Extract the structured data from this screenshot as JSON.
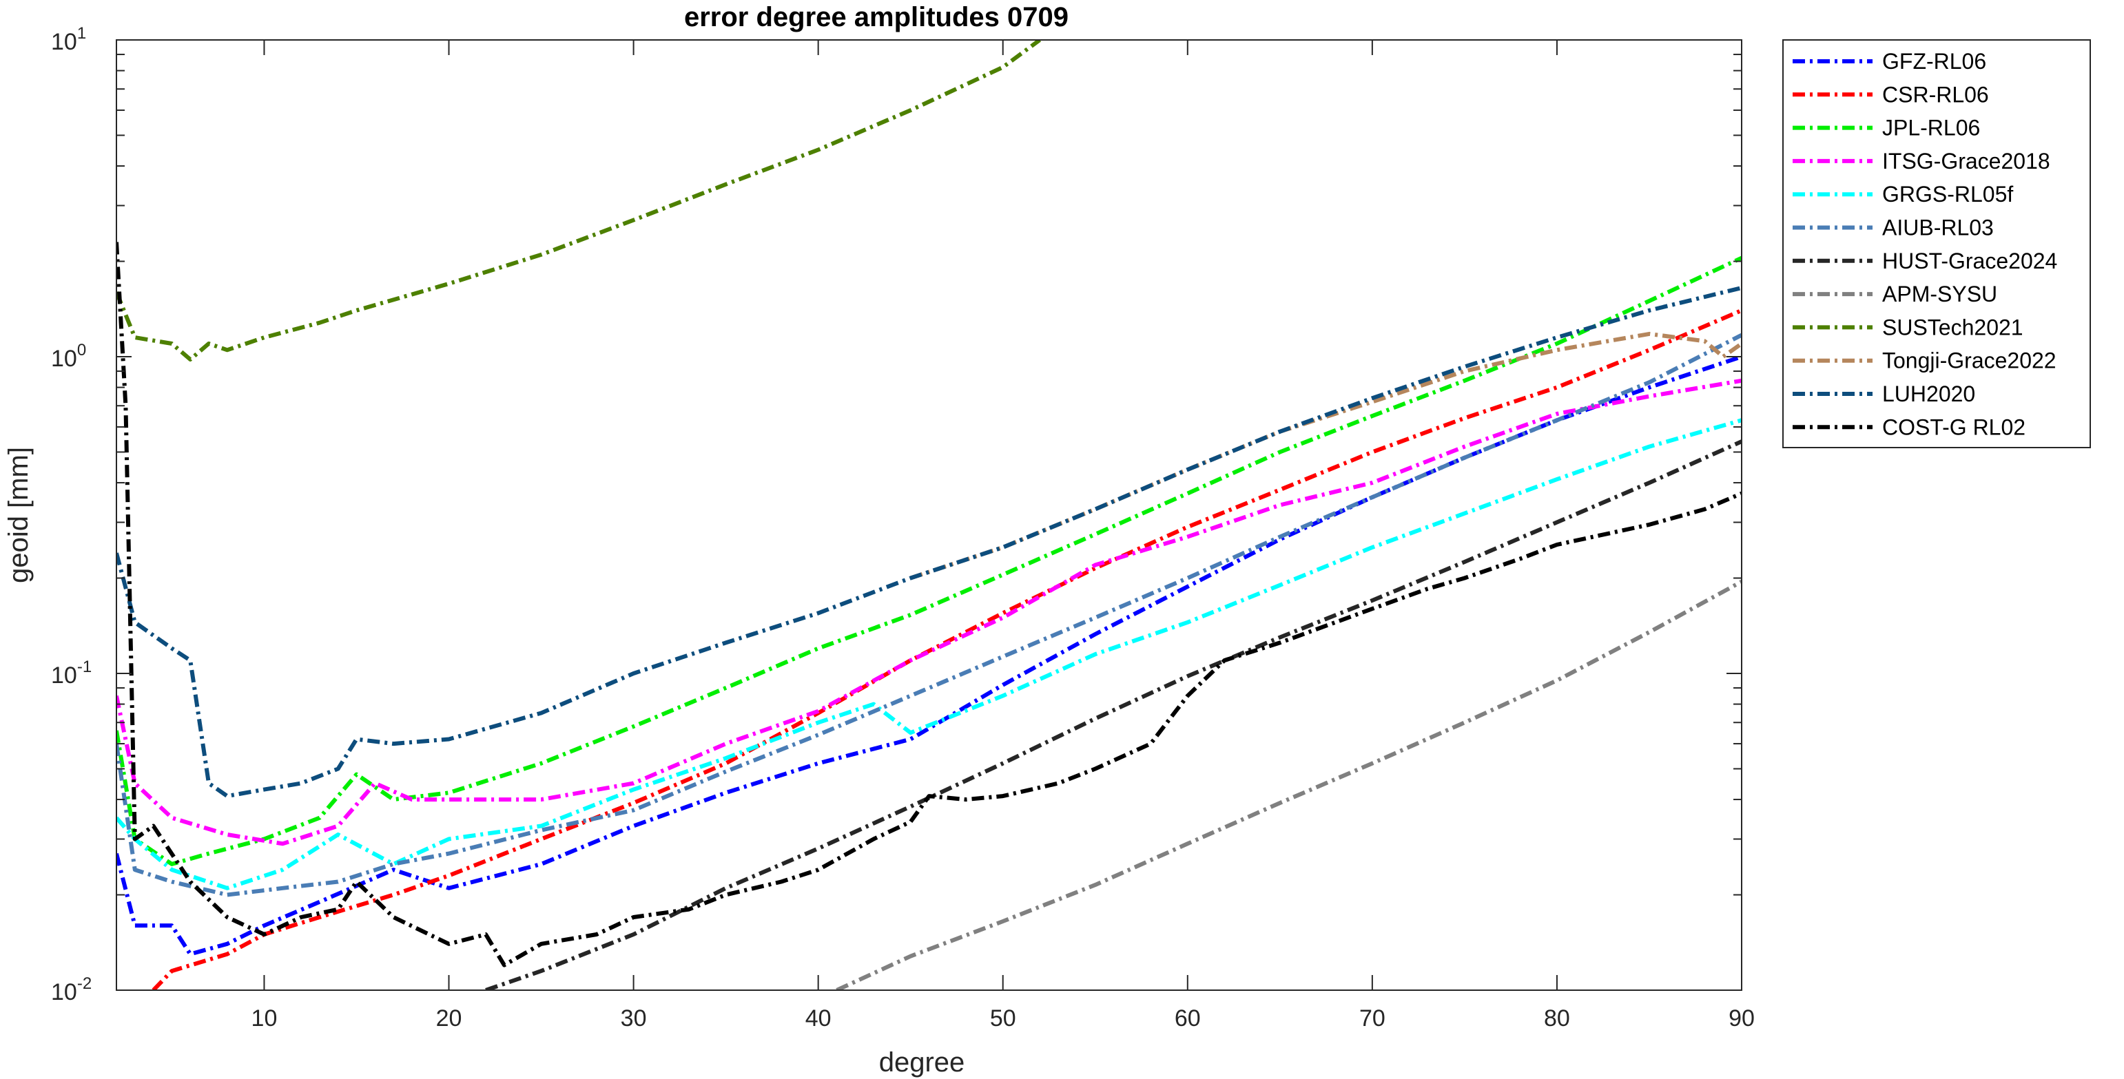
{
  "chart_data": {
    "type": "line",
    "title": "error degree amplitudes 0709",
    "xlabel": "degree",
    "ylabel": "geoid [mm]",
    "xlim": [
      2,
      90
    ],
    "ylim": [
      0.01,
      10
    ],
    "yscale": "log",
    "x_ticks": [
      10,
      20,
      30,
      40,
      50,
      60,
      70,
      80,
      90
    ],
    "x_tick_labels": [
      "10",
      "20",
      "30",
      "40",
      "50",
      "60",
      "70",
      "80",
      "90"
    ],
    "y_ticks": [
      0.01,
      0.1,
      1,
      10
    ],
    "y_tick_labels": [
      {
        "base": "10",
        "exp": "-2"
      },
      {
        "base": "10",
        "exp": "-1"
      },
      {
        "base": "10",
        "exp": "0"
      },
      {
        "base": "10",
        "exp": "1"
      }
    ],
    "grid": false,
    "legend_position": "outside-top-right",
    "line_style": "dash-dot",
    "series": [
      {
        "name": "GFZ-RL06",
        "color": "#0000ff",
        "points": [
          [
            2,
            0.027
          ],
          [
            3,
            0.016
          ],
          [
            5,
            0.016
          ],
          [
            6,
            0.013
          ],
          [
            8,
            0.014
          ],
          [
            10,
            0.016
          ],
          [
            13,
            0.019
          ],
          [
            17,
            0.024
          ],
          [
            20,
            0.021
          ],
          [
            25,
            0.025
          ],
          [
            30,
            0.033
          ],
          [
            35,
            0.042
          ],
          [
            40,
            0.052
          ],
          [
            45,
            0.062
          ],
          [
            50,
            0.092
          ],
          [
            55,
            0.133
          ],
          [
            60,
            0.188
          ],
          [
            65,
            0.265
          ],
          [
            70,
            0.36
          ],
          [
            75,
            0.48
          ],
          [
            80,
            0.63
          ],
          [
            85,
            0.8
          ],
          [
            90,
            1.0
          ]
        ]
      },
      {
        "name": "CSR-RL06",
        "color": "#ff0000",
        "points": [
          [
            4,
            0.01
          ],
          [
            5,
            0.0115
          ],
          [
            8,
            0.013
          ],
          [
            10,
            0.015
          ],
          [
            13,
            0.017
          ],
          [
            17,
            0.02
          ],
          [
            20,
            0.023
          ],
          [
            25,
            0.03
          ],
          [
            30,
            0.039
          ],
          [
            35,
            0.052
          ],
          [
            40,
            0.075
          ],
          [
            45,
            0.11
          ],
          [
            50,
            0.155
          ],
          [
            55,
            0.215
          ],
          [
            60,
            0.29
          ],
          [
            65,
            0.38
          ],
          [
            70,
            0.5
          ],
          [
            75,
            0.64
          ],
          [
            80,
            0.8
          ],
          [
            85,
            1.05
          ],
          [
            90,
            1.4
          ]
        ]
      },
      {
        "name": "JPL-RL06",
        "color": "#00ee00",
        "points": [
          [
            2,
            0.066
          ],
          [
            3,
            0.03
          ],
          [
            5,
            0.025
          ],
          [
            7,
            0.027
          ],
          [
            10,
            0.03
          ],
          [
            13,
            0.035
          ],
          [
            15,
            0.048
          ],
          [
            17,
            0.04
          ],
          [
            20,
            0.042
          ],
          [
            25,
            0.052
          ],
          [
            30,
            0.068
          ],
          [
            35,
            0.09
          ],
          [
            40,
            0.12
          ],
          [
            45,
            0.153
          ],
          [
            50,
            0.205
          ],
          [
            55,
            0.275
          ],
          [
            60,
            0.37
          ],
          [
            65,
            0.5
          ],
          [
            70,
            0.65
          ],
          [
            75,
            0.84
          ],
          [
            80,
            1.1
          ],
          [
            85,
            1.5
          ],
          [
            90,
            2.05
          ]
        ]
      },
      {
        "name": "ITSG-Grace2018",
        "color": "#ff00ff",
        "points": [
          [
            2,
            0.085
          ],
          [
            3,
            0.045
          ],
          [
            5,
            0.035
          ],
          [
            8,
            0.031
          ],
          [
            11,
            0.029
          ],
          [
            14,
            0.033
          ],
          [
            16,
            0.045
          ],
          [
            18,
            0.04
          ],
          [
            20,
            0.04
          ],
          [
            25,
            0.04
          ],
          [
            30,
            0.045
          ],
          [
            35,
            0.06
          ],
          [
            40,
            0.076
          ],
          [
            45,
            0.11
          ],
          [
            50,
            0.15
          ],
          [
            55,
            0.22
          ],
          [
            60,
            0.27
          ],
          [
            65,
            0.34
          ],
          [
            70,
            0.4
          ],
          [
            75,
            0.52
          ],
          [
            80,
            0.66
          ],
          [
            85,
            0.75
          ],
          [
            90,
            0.84
          ]
        ]
      },
      {
        "name": "GRGS-RL05f",
        "color": "#00ffff",
        "points": [
          [
            2,
            0.035
          ],
          [
            3,
            0.03
          ],
          [
            5,
            0.024
          ],
          [
            8,
            0.021
          ],
          [
            11,
            0.024
          ],
          [
            14,
            0.031
          ],
          [
            17,
            0.025
          ],
          [
            20,
            0.03
          ],
          [
            25,
            0.033
          ],
          [
            30,
            0.043
          ],
          [
            35,
            0.054
          ],
          [
            40,
            0.07
          ],
          [
            43,
            0.08
          ],
          [
            45,
            0.065
          ],
          [
            50,
            0.085
          ],
          [
            55,
            0.115
          ],
          [
            60,
            0.145
          ],
          [
            65,
            0.19
          ],
          [
            70,
            0.25
          ],
          [
            75,
            0.32
          ],
          [
            80,
            0.41
          ],
          [
            85,
            0.52
          ],
          [
            90,
            0.63
          ]
        ]
      },
      {
        "name": "AIUB-RL03",
        "color": "#4a7db5",
        "points": [
          [
            2,
            0.06
          ],
          [
            3,
            0.024
          ],
          [
            5,
            0.022
          ],
          [
            8,
            0.02
          ],
          [
            11,
            0.021
          ],
          [
            14,
            0.022
          ],
          [
            17,
            0.025
          ],
          [
            20,
            0.027
          ],
          [
            25,
            0.032
          ],
          [
            30,
            0.037
          ],
          [
            35,
            0.049
          ],
          [
            40,
            0.064
          ],
          [
            45,
            0.085
          ],
          [
            50,
            0.113
          ],
          [
            55,
            0.15
          ],
          [
            60,
            0.2
          ],
          [
            65,
            0.27
          ],
          [
            70,
            0.36
          ],
          [
            75,
            0.48
          ],
          [
            80,
            0.63
          ],
          [
            85,
            0.83
          ],
          [
            90,
            1.17
          ]
        ]
      },
      {
        "name": "HUST-Grace2024",
        "color": "#262626",
        "points": [
          [
            22,
            0.01
          ],
          [
            25,
            0.0115
          ],
          [
            30,
            0.015
          ],
          [
            35,
            0.021
          ],
          [
            40,
            0.028
          ],
          [
            45,
            0.038
          ],
          [
            50,
            0.052
          ],
          [
            55,
            0.072
          ],
          [
            60,
            0.098
          ],
          [
            65,
            0.13
          ],
          [
            70,
            0.17
          ],
          [
            75,
            0.225
          ],
          [
            80,
            0.3
          ],
          [
            85,
            0.4
          ],
          [
            90,
            0.54
          ]
        ]
      },
      {
        "name": "APM-SYSU",
        "color": "#808080",
        "points": [
          [
            41,
            0.01
          ],
          [
            45,
            0.0128
          ],
          [
            50,
            0.0165
          ],
          [
            55,
            0.0215
          ],
          [
            60,
            0.029
          ],
          [
            65,
            0.039
          ],
          [
            70,
            0.052
          ],
          [
            75,
            0.07
          ],
          [
            80,
            0.095
          ],
          [
            85,
            0.135
          ],
          [
            90,
            0.195
          ]
        ]
      },
      {
        "name": "SUSTech2021",
        "color": "#4d8000",
        "points": [
          [
            2,
            1.6
          ],
          [
            3,
            1.15
          ],
          [
            5,
            1.1
          ],
          [
            6,
            0.98
          ],
          [
            7,
            1.1
          ],
          [
            8,
            1.05
          ],
          [
            10,
            1.15
          ],
          [
            13,
            1.28
          ],
          [
            15,
            1.4
          ],
          [
            20,
            1.7
          ],
          [
            25,
            2.1
          ],
          [
            30,
            2.7
          ],
          [
            35,
            3.5
          ],
          [
            40,
            4.5
          ],
          [
            45,
            6.0
          ],
          [
            50,
            8.2
          ],
          [
            52,
            10.0
          ]
        ]
      },
      {
        "name": "Tongji-Grace2022",
        "color": "#b5865c",
        "points": [
          [
            45,
            0.2
          ],
          [
            50,
            0.25
          ],
          [
            55,
            0.33
          ],
          [
            60,
            0.44
          ],
          [
            65,
            0.58
          ],
          [
            70,
            0.72
          ],
          [
            75,
            0.9
          ],
          [
            80,
            1.05
          ],
          [
            85,
            1.18
          ],
          [
            88,
            1.12
          ],
          [
            89,
            1.0
          ],
          [
            90,
            1.1
          ]
        ]
      },
      {
        "name": "LUH2020",
        "color": "#0d4d7d",
        "points": [
          [
            2,
            0.24
          ],
          [
            3,
            0.145
          ],
          [
            5,
            0.12
          ],
          [
            6,
            0.11
          ],
          [
            7,
            0.045
          ],
          [
            8,
            0.041
          ],
          [
            10,
            0.043
          ],
          [
            12,
            0.045
          ],
          [
            14,
            0.05
          ],
          [
            15,
            0.062
          ],
          [
            17,
            0.06
          ],
          [
            20,
            0.062
          ],
          [
            25,
            0.075
          ],
          [
            30,
            0.1
          ],
          [
            35,
            0.125
          ],
          [
            40,
            0.155
          ],
          [
            45,
            0.2
          ],
          [
            50,
            0.25
          ],
          [
            55,
            0.33
          ],
          [
            60,
            0.44
          ],
          [
            65,
            0.58
          ],
          [
            70,
            0.74
          ],
          [
            75,
            0.93
          ],
          [
            80,
            1.15
          ],
          [
            85,
            1.4
          ],
          [
            90,
            1.65
          ]
        ]
      },
      {
        "name": "COST-G RL02",
        "color": "#000000",
        "points": [
          [
            2,
            2.3
          ],
          [
            2.5,
            0.7
          ],
          [
            3,
            0.03
          ],
          [
            4,
            0.033
          ],
          [
            6,
            0.022
          ],
          [
            8,
            0.017
          ],
          [
            10,
            0.015
          ],
          [
            12,
            0.017
          ],
          [
            14,
            0.018
          ],
          [
            15,
            0.022
          ],
          [
            17,
            0.017
          ],
          [
            20,
            0.014
          ],
          [
            22,
            0.015
          ],
          [
            23,
            0.012
          ],
          [
            25,
            0.014
          ],
          [
            28,
            0.015
          ],
          [
            30,
            0.017
          ],
          [
            33,
            0.018
          ],
          [
            35,
            0.02
          ],
          [
            38,
            0.022
          ],
          [
            40,
            0.024
          ],
          [
            43,
            0.03
          ],
          [
            45,
            0.034
          ],
          [
            46,
            0.041
          ],
          [
            48,
            0.04
          ],
          [
            50,
            0.041
          ],
          [
            53,
            0.045
          ],
          [
            55,
            0.05
          ],
          [
            58,
            0.06
          ],
          [
            60,
            0.085
          ],
          [
            62,
            0.11
          ],
          [
            65,
            0.125
          ],
          [
            68,
            0.145
          ],
          [
            70,
            0.16
          ],
          [
            73,
            0.185
          ],
          [
            75,
            0.2
          ],
          [
            78,
            0.23
          ],
          [
            80,
            0.255
          ],
          [
            85,
            0.295
          ],
          [
            88,
            0.33
          ],
          [
            90,
            0.37
          ]
        ]
      }
    ]
  }
}
